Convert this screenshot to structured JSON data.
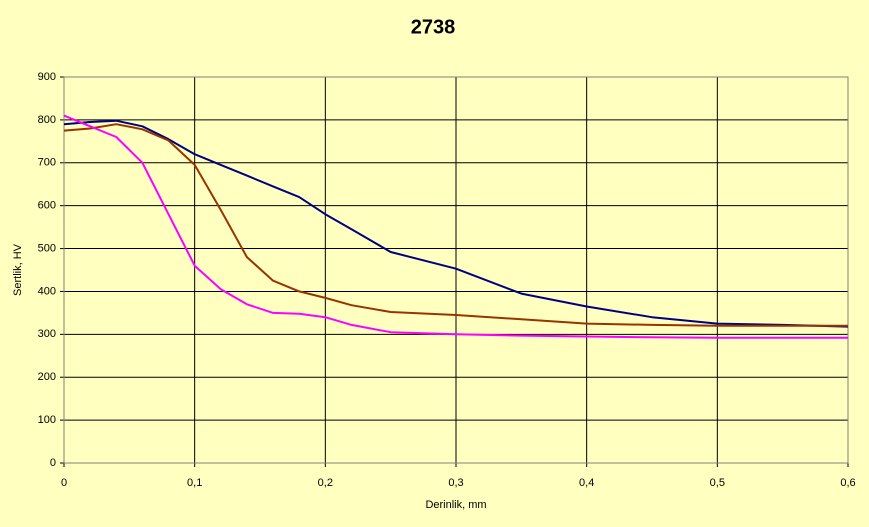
{
  "chart_data": {
    "type": "line",
    "title": "2738",
    "x_label": "Derinlik, mm",
    "y_label": "Sertlik, HV",
    "x": [
      0,
      0.02,
      0.04,
      0.06,
      0.08,
      0.1,
      0.12,
      0.14,
      0.16,
      0.18,
      0.2,
      0.22,
      0.25,
      0.3,
      0.35,
      0.4,
      0.45,
      0.5,
      0.55,
      0.6
    ],
    "series": [
      {
        "color": "#000080",
        "values": [
          790,
          795,
          798,
          785,
          755,
          720,
          695,
          670,
          645,
          620,
          580,
          545,
          492,
          453,
          395,
          365,
          340,
          325,
          322,
          318
        ]
      },
      {
        "color": "#993300",
        "values": [
          775,
          780,
          790,
          778,
          752,
          695,
          590,
          480,
          425,
          400,
          385,
          368,
          352,
          345,
          335,
          325,
          322,
          320,
          320,
          320
        ]
      },
      {
        "color": "#ff00ff",
        "values": [
          810,
          785,
          760,
          700,
          580,
          460,
          405,
          370,
          350,
          348,
          340,
          322,
          305,
          300,
          297,
          295,
          293,
          292,
          292,
          292
        ]
      }
    ],
    "xlim": [
      0,
      0.6
    ],
    "xticks": [
      0,
      {
        "value": 0.1,
        "label": "0,1"
      },
      {
        "value": 0.2,
        "label": "0,2"
      },
      {
        "value": 0.3,
        "label": "0,3"
      },
      {
        "value": 0.4,
        "label": "0,4"
      },
      {
        "value": 0.5,
        "label": "0,5"
      },
      {
        "value": 0.6,
        "label": "0,6"
      }
    ],
    "ylim": [
      0,
      900
    ],
    "yticks": [
      0,
      100,
      200,
      300,
      400,
      500,
      600,
      700,
      800,
      900
    ],
    "grid": true
  }
}
